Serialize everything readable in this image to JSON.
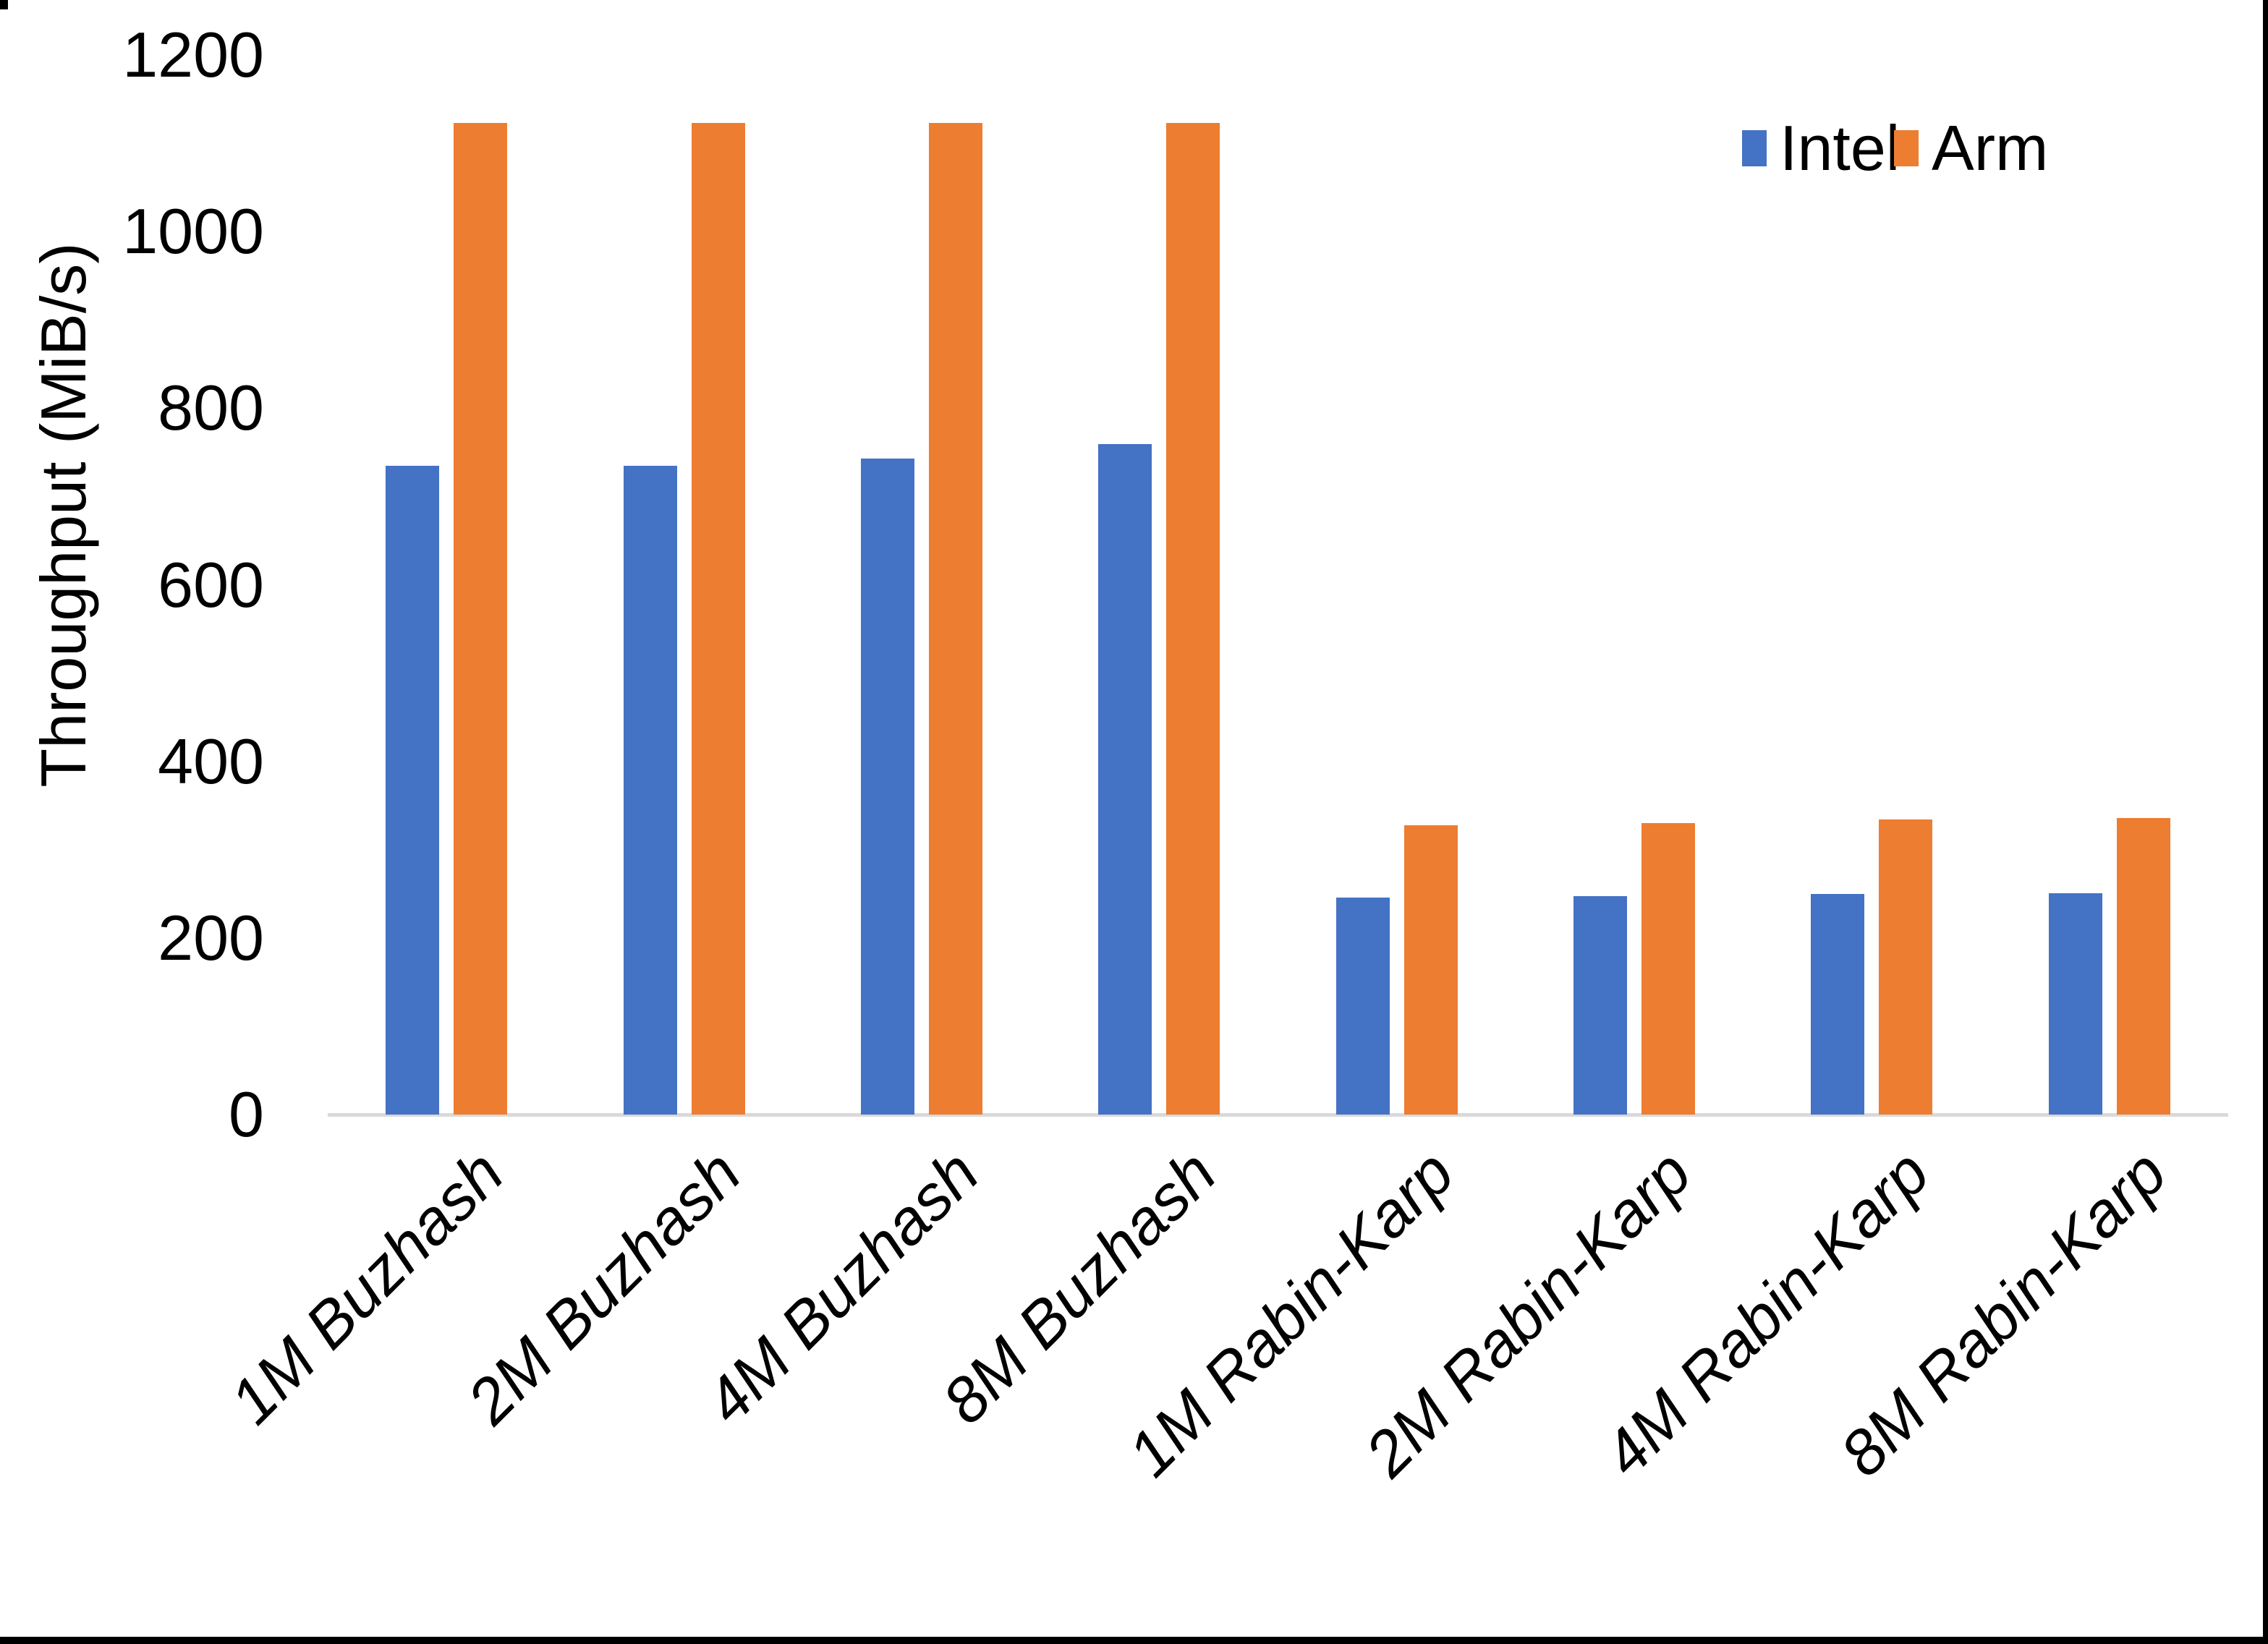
{
  "chart_data": {
    "type": "bar",
    "title": "",
    "categories": [
      "1M Buzhash",
      "2M Buzhash",
      "4M Buzhash",
      "8M Buzhash",
      "1M Rabin-Karp",
      "2M Rabin-Karp",
      "4M Rabin-Karp",
      "8M Rabin-Karp"
    ],
    "series": [
      {
        "name": "Intel",
        "color": "#4472C4",
        "values": [
          735,
          735,
          743,
          759,
          246,
          247,
          250,
          251
        ]
      },
      {
        "name": "Arm",
        "color": "#ED7D31",
        "values": [
          1123,
          1123,
          1123,
          1123,
          328,
          330,
          334,
          336
        ]
      }
    ],
    "xlabel": "",
    "ylabel": "Throughput (MiB/s)",
    "ylim": [
      0,
      1200
    ],
    "yticks": [
      0,
      200,
      400,
      600,
      800,
      1000,
      1200
    ],
    "grid": false,
    "legend_position": "top-right",
    "category_label_rotation_deg": -45
  },
  "colors": {
    "background": "#FFFFFF",
    "axis_line": "#D9D9D9",
    "text": "#000000",
    "frame_border": "#000000"
  }
}
